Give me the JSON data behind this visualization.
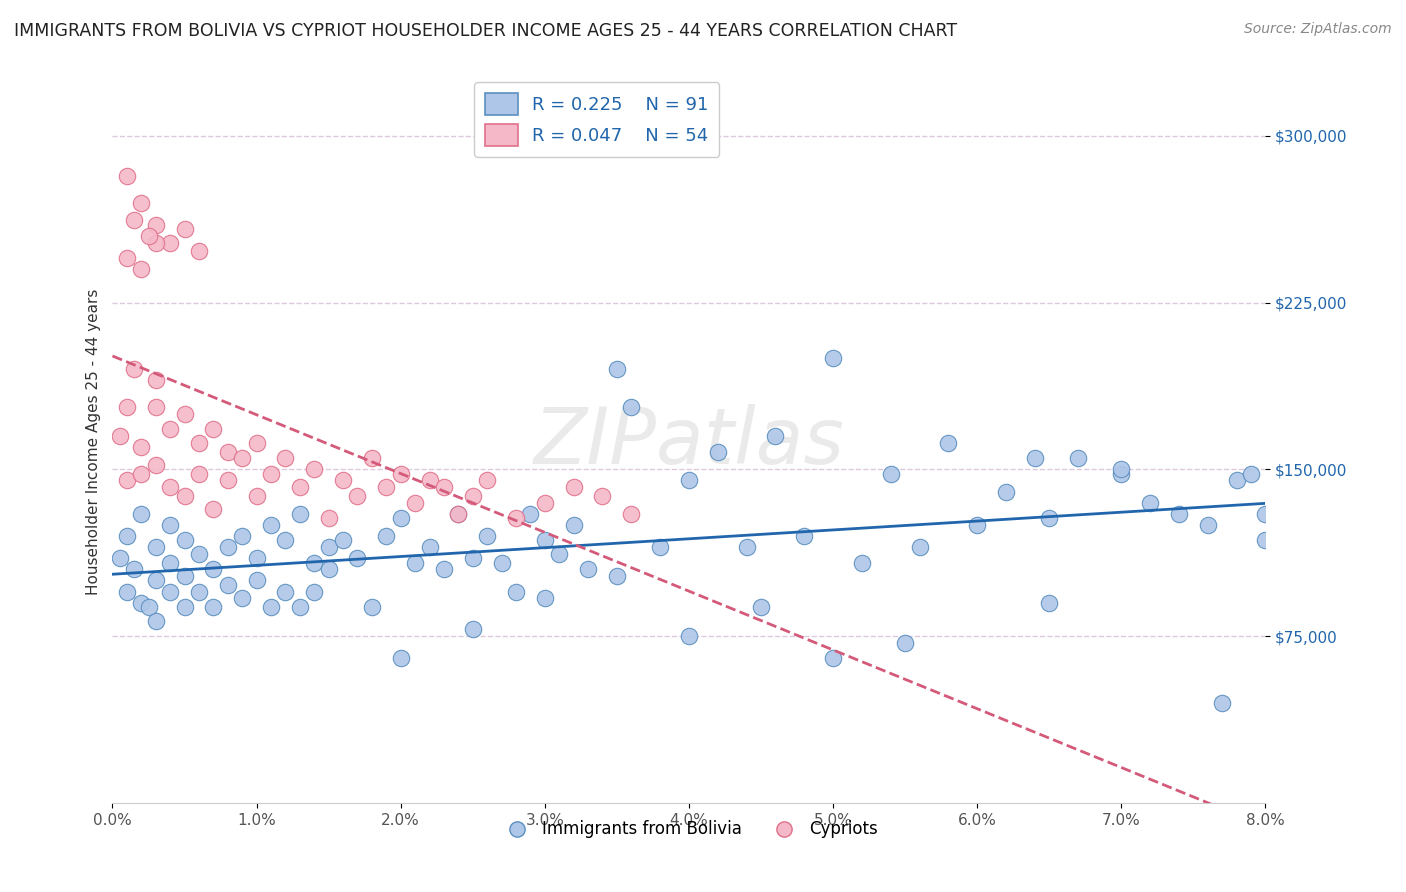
{
  "title": "IMMIGRANTS FROM BOLIVIA VS CYPRIOT HOUSEHOLDER INCOME AGES 25 - 44 YEARS CORRELATION CHART",
  "source": "Source: ZipAtlas.com",
  "ylabel": "Householder Income Ages 25 - 44 years",
  "xlim": [
    0.0,
    0.08
  ],
  "ylim": [
    0,
    325000
  ],
  "xticks": [
    0.0,
    0.01,
    0.02,
    0.03,
    0.04,
    0.05,
    0.06,
    0.07,
    0.08
  ],
  "xticklabels": [
    "0.0%",
    "1.0%",
    "2.0%",
    "3.0%",
    "4.0%",
    "5.0%",
    "6.0%",
    "7.0%",
    "8.0%"
  ],
  "ytick_positions": [
    75000,
    150000,
    225000,
    300000
  ],
  "ytick_labels": [
    "$75,000",
    "$150,000",
    "$225,000",
    "$300,000"
  ],
  "bolivia_color": "#aec6e8",
  "cypriot_color": "#f4b8c8",
  "bolivia_edge_color": "#5a8fc0",
  "cypriot_edge_color": "#e0708a",
  "bolivia_line_color": "#2166ac",
  "cypriot_line_color": "#d45a7a",
  "legend_R_bolivia": "R = 0.225",
  "legend_N_bolivia": "N = 91",
  "legend_R_cypriot": "R = 0.047",
  "legend_N_cypriot": "N = 54",
  "bolivia_x": [
    0.0005,
    0.001,
    0.001,
    0.0015,
    0.002,
    0.002,
    0.0025,
    0.003,
    0.003,
    0.003,
    0.004,
    0.004,
    0.004,
    0.005,
    0.005,
    0.005,
    0.006,
    0.006,
    0.007,
    0.007,
    0.008,
    0.008,
    0.009,
    0.009,
    0.01,
    0.01,
    0.011,
    0.011,
    0.012,
    0.012,
    0.013,
    0.013,
    0.014,
    0.014,
    0.015,
    0.015,
    0.016,
    0.017,
    0.018,
    0.019,
    0.02,
    0.021,
    0.022,
    0.023,
    0.024,
    0.025,
    0.026,
    0.027,
    0.028,
    0.029,
    0.03,
    0.031,
    0.032,
    0.033,
    0.035,
    0.036,
    0.038,
    0.04,
    0.042,
    0.044,
    0.046,
    0.048,
    0.05,
    0.052,
    0.054,
    0.056,
    0.058,
    0.06,
    0.062,
    0.064,
    0.065,
    0.067,
    0.07,
    0.072,
    0.074,
    0.076,
    0.077,
    0.078,
    0.079,
    0.08,
    0.08,
    0.065,
    0.07,
    0.02,
    0.025,
    0.03,
    0.035,
    0.04,
    0.045,
    0.05,
    0.055
  ],
  "bolivia_y": [
    110000,
    95000,
    120000,
    105000,
    90000,
    130000,
    88000,
    115000,
    100000,
    82000,
    125000,
    95000,
    108000,
    88000,
    118000,
    102000,
    112000,
    95000,
    105000,
    88000,
    115000,
    98000,
    120000,
    92000,
    110000,
    100000,
    125000,
    88000,
    118000,
    95000,
    130000,
    88000,
    108000,
    95000,
    115000,
    105000,
    118000,
    110000,
    88000,
    120000,
    128000,
    108000,
    115000,
    105000,
    130000,
    110000,
    120000,
    108000,
    95000,
    130000,
    118000,
    112000,
    125000,
    105000,
    195000,
    178000,
    115000,
    145000,
    158000,
    115000,
    165000,
    120000,
    200000,
    108000,
    148000,
    115000,
    162000,
    125000,
    140000,
    155000,
    128000,
    155000,
    148000,
    135000,
    130000,
    125000,
    45000,
    145000,
    148000,
    118000,
    130000,
    90000,
    150000,
    65000,
    78000,
    92000,
    102000,
    75000,
    88000,
    65000,
    72000
  ],
  "cypriot_x": [
    0.0005,
    0.001,
    0.001,
    0.0015,
    0.002,
    0.002,
    0.003,
    0.003,
    0.003,
    0.004,
    0.004,
    0.005,
    0.005,
    0.006,
    0.006,
    0.007,
    0.007,
    0.008,
    0.008,
    0.009,
    0.01,
    0.01,
    0.011,
    0.012,
    0.013,
    0.014,
    0.015,
    0.016,
    0.017,
    0.018,
    0.019,
    0.02,
    0.021,
    0.022,
    0.023,
    0.024,
    0.025,
    0.026,
    0.028,
    0.03,
    0.032,
    0.034,
    0.036,
    0.001,
    0.002,
    0.003,
    0.004,
    0.005,
    0.006,
    0.001,
    0.002,
    0.003,
    0.0015,
    0.0025
  ],
  "cypriot_y": [
    165000,
    145000,
    178000,
    195000,
    160000,
    148000,
    190000,
    152000,
    178000,
    168000,
    142000,
    175000,
    138000,
    162000,
    148000,
    168000,
    132000,
    158000,
    145000,
    155000,
    162000,
    138000,
    148000,
    155000,
    142000,
    150000,
    128000,
    145000,
    138000,
    155000,
    142000,
    148000,
    135000,
    145000,
    142000,
    130000,
    138000,
    145000,
    128000,
    135000,
    142000,
    138000,
    130000,
    282000,
    270000,
    260000,
    252000,
    258000,
    248000,
    245000,
    240000,
    252000,
    262000,
    255000
  ],
  "watermark": "ZIPatlas",
  "background_color": "#ffffff",
  "grid_color": "#ddc8dd",
  "title_fontsize": 12.5,
  "axis_label_fontsize": 11,
  "tick_fontsize": 11,
  "legend_fontsize": 13,
  "source_fontsize": 10,
  "ytick_color": "#2166ac"
}
